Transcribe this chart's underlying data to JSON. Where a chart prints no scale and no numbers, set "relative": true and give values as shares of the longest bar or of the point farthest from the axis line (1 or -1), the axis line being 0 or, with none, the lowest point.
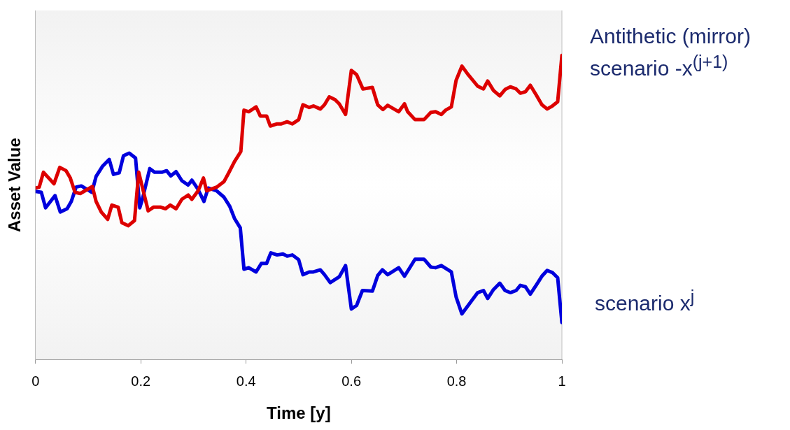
{
  "chart_data": {
    "type": "line",
    "xlabel": "Time [y]",
    "ylabel": "Asset Value",
    "relative": true,
    "xlim": [
      0,
      1
    ],
    "xticks": [
      0,
      0.2,
      0.4,
      0.6,
      0.8,
      1
    ],
    "grid": false,
    "legend": false,
    "marker": "none",
    "line_style": "solid",
    "series": [
      {
        "name": "Antithetic (mirror) scenario -x$^{(j+1)}$",
        "color": "#dd0000",
        "x": [
          0,
          0.007,
          0.015,
          0.035,
          0.046,
          0.058,
          0.066,
          0.075,
          0.085,
          0.108,
          0.115,
          0.125,
          0.137,
          0.145,
          0.157,
          0.164,
          0.176,
          0.188,
          0.196,
          0.214,
          0.224,
          0.238,
          0.247,
          0.256,
          0.267,
          0.278,
          0.29,
          0.297,
          0.309,
          0.319,
          0.325,
          0.344,
          0.358,
          0.367,
          0.378,
          0.39,
          0.396,
          0.405,
          0.419,
          0.427,
          0.439,
          0.446,
          0.459,
          0.467,
          0.478,
          0.488,
          0.5,
          0.508,
          0.52,
          0.528,
          0.541,
          0.549,
          0.558,
          0.569,
          0.577,
          0.589,
          0.6,
          0.61,
          0.622,
          0.64,
          0.65,
          0.66,
          0.669,
          0.69,
          0.701,
          0.707,
          0.721,
          0.738,
          0.751,
          0.76,
          0.771,
          0.779,
          0.79,
          0.799,
          0.81,
          0.821,
          0.84,
          0.851,
          0.859,
          0.87,
          0.882,
          0.892,
          0.902,
          0.913,
          0.921,
          0.931,
          0.94,
          0.951,
          0.962,
          0.972,
          0.982,
          0.992,
          1
        ],
        "values": [
          0.564,
          0.567,
          0.616,
          0.578,
          0.632,
          0.621,
          0.597,
          0.55,
          0.546,
          0.569,
          0.52,
          0.485,
          0.461,
          0.508,
          0.501,
          0.45,
          0.44,
          0.457,
          0.616,
          0.489,
          0.501,
          0.501,
          0.496,
          0.508,
          0.496,
          0.527,
          0.541,
          0.527,
          0.555,
          0.597,
          0.555,
          0.567,
          0.585,
          0.614,
          0.651,
          0.684,
          0.82,
          0.815,
          0.831,
          0.801,
          0.801,
          0.768,
          0.775,
          0.775,
          0.782,
          0.775,
          0.789,
          0.838,
          0.829,
          0.834,
          0.824,
          0.838,
          0.864,
          0.855,
          0.841,
          0.806,
          0.951,
          0.937,
          0.89,
          0.895,
          0.838,
          0.822,
          0.836,
          0.815,
          0.841,
          0.815,
          0.789,
          0.789,
          0.813,
          0.815,
          0.806,
          0.82,
          0.831,
          0.918,
          0.965,
          0.939,
          0.899,
          0.89,
          0.916,
          0.885,
          0.867,
          0.888,
          0.897,
          0.89,
          0.876,
          0.881,
          0.902,
          0.871,
          0.838,
          0.824,
          0.834,
          0.848,
          1
        ]
      },
      {
        "name": "scenario x$^{j}$",
        "color": "#0000dd",
        "x": [
          0,
          0.011,
          0.019,
          0.037,
          0.047,
          0.06,
          0.068,
          0.077,
          0.087,
          0.107,
          0.115,
          0.127,
          0.14,
          0.148,
          0.159,
          0.167,
          0.178,
          0.19,
          0.198,
          0.203,
          0.217,
          0.226,
          0.24,
          0.249,
          0.257,
          0.267,
          0.278,
          0.29,
          0.297,
          0.308,
          0.32,
          0.328,
          0.344,
          0.358,
          0.369,
          0.378,
          0.389,
          0.396,
          0.405,
          0.419,
          0.429,
          0.439,
          0.447,
          0.459,
          0.47,
          0.478,
          0.488,
          0.5,
          0.508,
          0.52,
          0.528,
          0.541,
          0.549,
          0.56,
          0.577,
          0.589,
          0.6,
          0.61,
          0.621,
          0.64,
          0.65,
          0.659,
          0.669,
          0.69,
          0.701,
          0.721,
          0.738,
          0.751,
          0.76,
          0.771,
          0.79,
          0.799,
          0.81,
          0.822,
          0.84,
          0.851,
          0.859,
          0.87,
          0.882,
          0.892,
          0.902,
          0.913,
          0.921,
          0.931,
          0.94,
          0.951,
          0.962,
          0.972,
          0.982,
          0.992,
          1
        ],
        "values": [
          0.553,
          0.55,
          0.499,
          0.539,
          0.485,
          0.496,
          0.52,
          0.567,
          0.571,
          0.55,
          0.602,
          0.635,
          0.658,
          0.609,
          0.614,
          0.67,
          0.679,
          0.663,
          0.499,
          0.527,
          0.628,
          0.616,
          0.616,
          0.621,
          0.604,
          0.618,
          0.588,
          0.574,
          0.59,
          0.562,
          0.52,
          0.564,
          0.555,
          0.534,
          0.504,
          0.464,
          0.433,
          0.297,
          0.302,
          0.288,
          0.316,
          0.316,
          0.351,
          0.344,
          0.347,
          0.34,
          0.344,
          0.328,
          0.279,
          0.288,
          0.288,
          0.295,
          0.279,
          0.253,
          0.272,
          0.309,
          0.166,
          0.178,
          0.227,
          0.225,
          0.276,
          0.295,
          0.279,
          0.302,
          0.274,
          0.33,
          0.33,
          0.304,
          0.302,
          0.309,
          0.288,
          0.206,
          0.15,
          0.178,
          0.22,
          0.227,
          0.201,
          0.23,
          0.251,
          0.227,
          0.22,
          0.227,
          0.244,
          0.239,
          0.215,
          0.244,
          0.274,
          0.293,
          0.286,
          0.269,
          0.122
        ]
      }
    ]
  }
}
